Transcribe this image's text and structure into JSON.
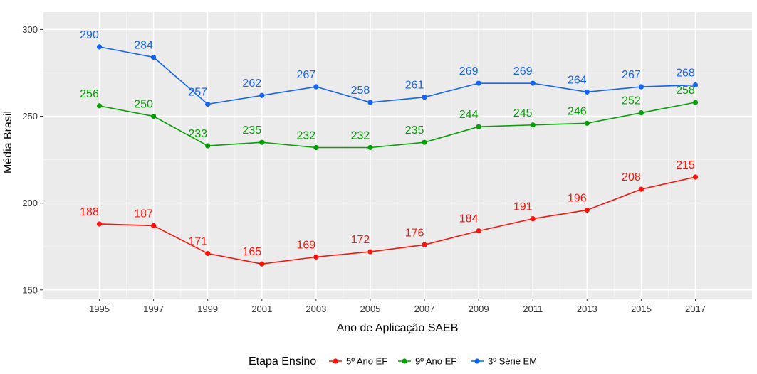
{
  "chart_data": {
    "type": "line",
    "xlabel": "Ano de Aplicação SAEB",
    "ylabel": "Média Brasil",
    "x": [
      1995,
      1997,
      1999,
      2001,
      2003,
      2005,
      2007,
      2009,
      2011,
      2013,
      2015,
      2017
    ],
    "x_ticks": [
      "1995",
      "1997",
      "1999",
      "2001",
      "2003",
      "2005",
      "2007",
      "2009",
      "2011",
      "2013",
      "2015",
      "2017"
    ],
    "y_ticks": [
      "150",
      "200",
      "250",
      "300"
    ],
    "ylim": [
      145,
      310
    ],
    "grid": true,
    "legend": {
      "title": "Etapa Ensino",
      "position": "bottom"
    },
    "series": [
      {
        "name": "5º Ano EF",
        "color": "#F8140C",
        "values": [
          188,
          187,
          171,
          165,
          169,
          172,
          176,
          184,
          191,
          196,
          208,
          215
        ],
        "labels": [
          "188",
          "187",
          "171",
          "165",
          "169",
          "172",
          "176",
          "184",
          "191",
          "196",
          "208",
          "215"
        ]
      },
      {
        "name": "9º Ano EF",
        "color": "#079E07",
        "values": [
          256,
          250,
          233,
          235,
          232,
          232,
          235,
          244,
          245,
          246,
          252,
          258
        ],
        "labels": [
          "256",
          "250",
          "233",
          "235",
          "232",
          "232",
          "235",
          "244",
          "245",
          "246",
          "252",
          "258"
        ]
      },
      {
        "name": "3º Série EM",
        "color": "#1364F4",
        "values": [
          290,
          284,
          257,
          262,
          267,
          258,
          261,
          269,
          269,
          264,
          267,
          268
        ],
        "labels": [
          "290",
          "284",
          "257",
          "262",
          "267",
          "258",
          "261",
          "269",
          "269",
          "264",
          "267",
          "268"
        ]
      }
    ]
  }
}
